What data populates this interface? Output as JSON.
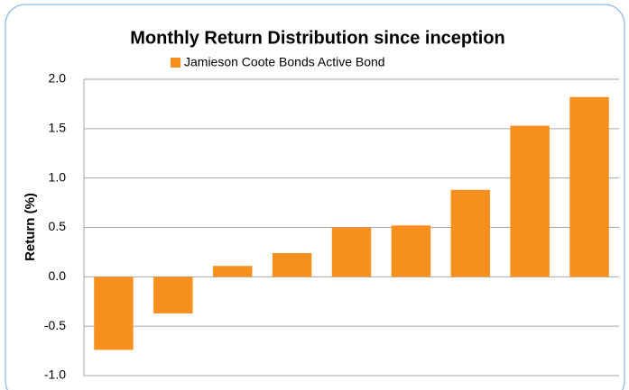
{
  "chart_data": {
    "type": "bar",
    "title": "Monthly Return Distribution since inception",
    "y_label": "Return (%)",
    "categories": [
      null,
      null,
      null,
      null,
      null,
      null,
      null,
      null,
      null
    ],
    "series": [
      {
        "name": "Jamieson Coote Bonds Active Bond",
        "color": "#f7901e",
        "values": [
          -0.74,
          -0.37,
          0.11,
          0.24,
          0.5,
          0.52,
          0.88,
          1.53,
          1.82
        ]
      }
    ],
    "ylim": [
      -1,
      2
    ],
    "yticks": [
      {
        "value": -1,
        "label": "-1.0"
      },
      {
        "value": -0.5,
        "label": "-0.5"
      },
      {
        "value": 0,
        "label": "0.0"
      },
      {
        "value": 0.5,
        "label": "0.5"
      },
      {
        "value": 1,
        "label": "1.0"
      },
      {
        "value": 1.5,
        "label": "1.5"
      },
      {
        "value": 2,
        "label": "2.0"
      }
    ],
    "negative_tick_color": "#e02020",
    "grid": true,
    "legend": "top"
  }
}
